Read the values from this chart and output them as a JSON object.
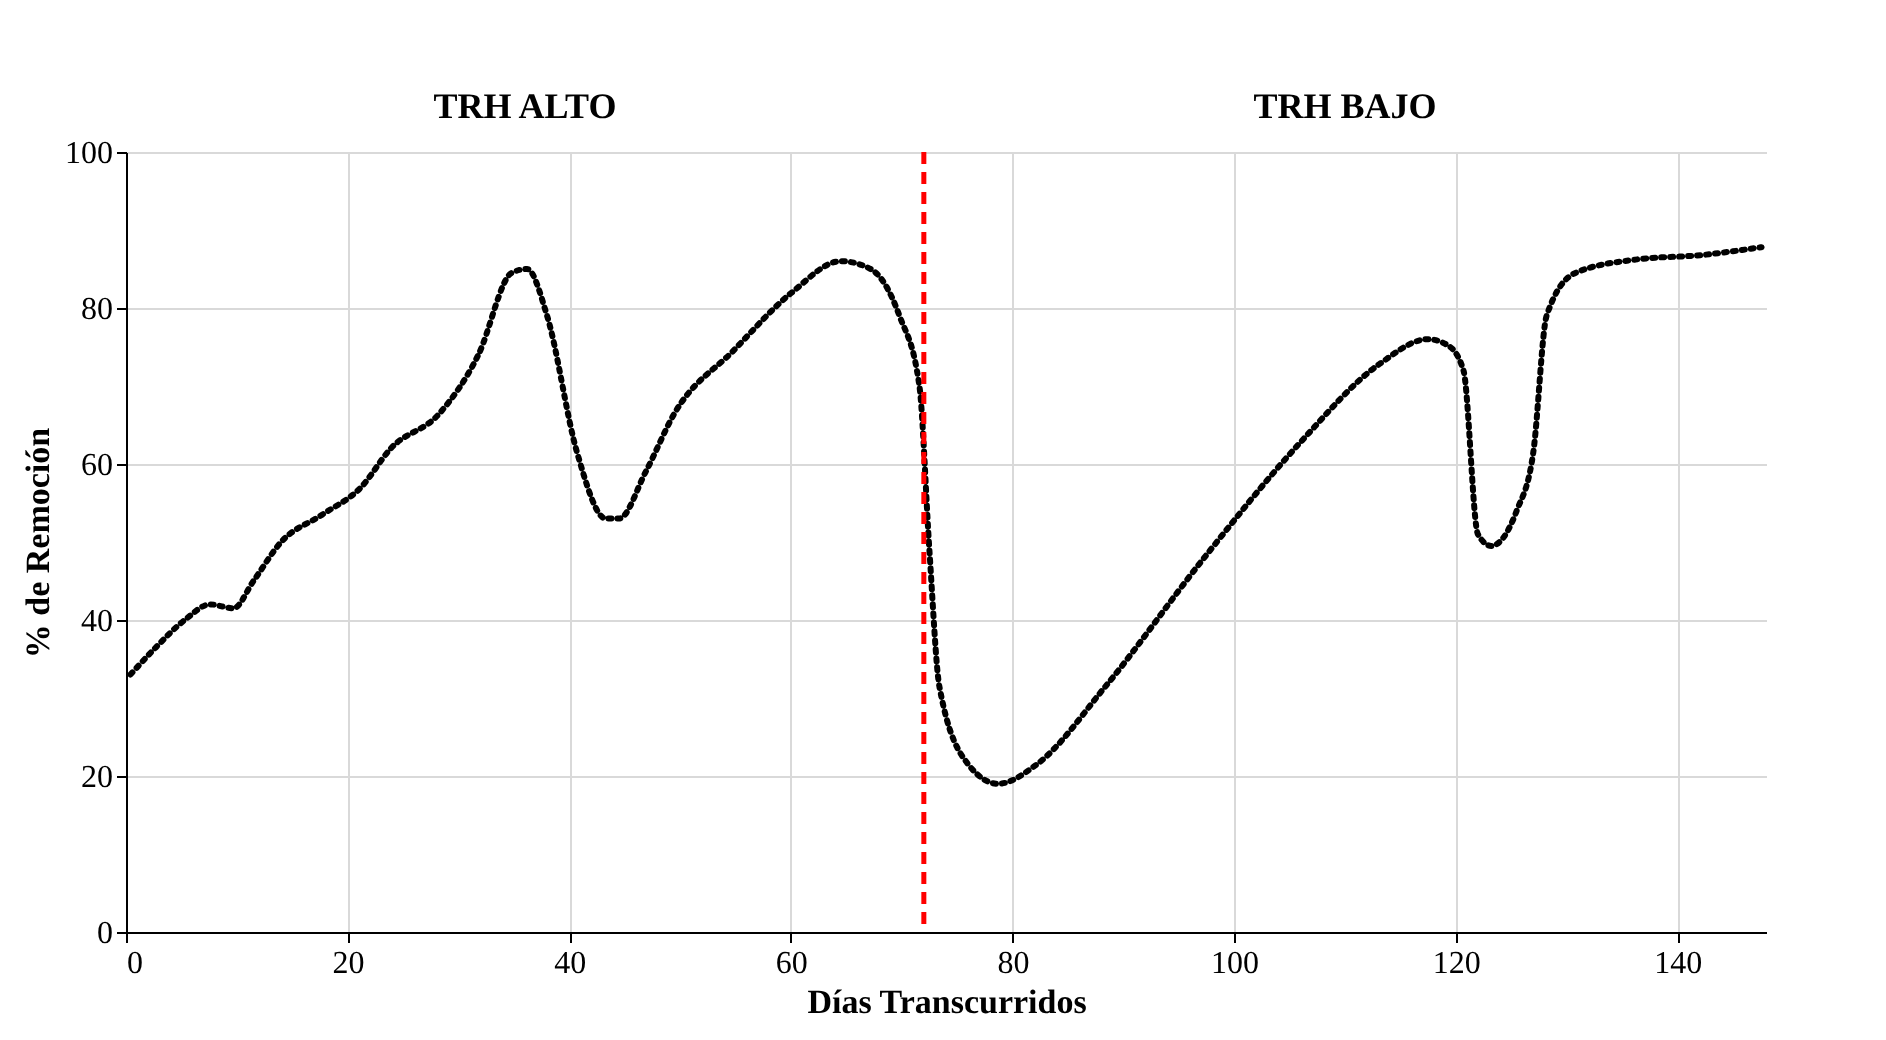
{
  "chart_data": {
    "type": "line",
    "xlabel": "Días Transcurridos",
    "ylabel": "% de Remoción",
    "xlim": [
      0,
      148
    ],
    "xticks": [
      0,
      20,
      40,
      60,
      80,
      100,
      120,
      140
    ],
    "ylim": [
      0,
      100
    ],
    "yticks": [
      0,
      20,
      40,
      60,
      80,
      100
    ],
    "grid": true,
    "annotations": [
      "TRH ALTO",
      "TRH BAJO"
    ],
    "ref_lines": [
      {
        "axis": "x",
        "value": 72,
        "label": null,
        "color": "#ff0000",
        "line_style": "dashed"
      }
    ],
    "series": [
      {
        "color": "#000000",
        "line_style": "dotted",
        "marker": "none",
        "x": [
          0.4,
          2.7,
          5.3,
          7.6,
          9.7,
          11.5,
          14,
          17.7,
          21.2,
          23.9,
          28.3,
          31.8,
          34.8,
          36.2,
          38,
          40.7,
          43.3,
          44.5,
          46.9,
          49.5,
          54.8,
          60.1,
          64.5,
          67.2,
          69.8,
          71.6,
          72.5,
          73.4,
          76,
          78.7,
          82.2,
          88.4,
          97.2,
          106,
          113.1,
          117.5,
          119.3,
          120.7,
          122,
          123.2,
          125.5,
          127,
          128.2,
          130.8,
          136.2,
          142.3,
          147.6
        ],
        "values": [
          33,
          36.5,
          40,
          42,
          41.5,
          45,
          50,
          53.5,
          57,
          62,
          66.5,
          74,
          84.5,
          85,
          79,
          61.5,
          53,
          53,
          59,
          66.5,
          74.5,
          82,
          86,
          85,
          79,
          70,
          49,
          31.5,
          21.5,
          19,
          21.5,
          31.5,
          47.8,
          62.8,
          72.8,
          76,
          75.2,
          72,
          51,
          49.5,
          54,
          61.5,
          79,
          84.5,
          86.2,
          86.8,
          87.8
        ]
      }
    ]
  }
}
